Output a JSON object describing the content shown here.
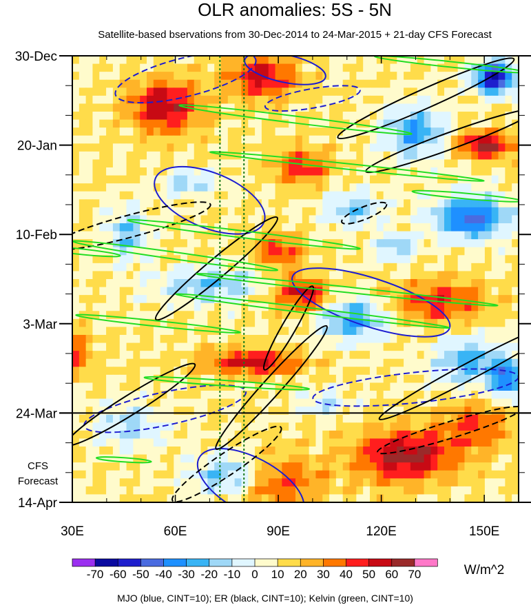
{
  "chart_data": {
    "type": "heatmap",
    "title": "OLR anomalies: 5S - 5N",
    "subtitle": "Satellite-based bservations from 30-Dec-2014 to 24-Mar-2015 + 21-day CFS Forecast",
    "x_ticks": [
      {
        "value": 30,
        "label": "30E"
      },
      {
        "value": 60,
        "label": "60E"
      },
      {
        "value": 90,
        "label": "90E"
      },
      {
        "value": 120,
        "label": "120E"
      },
      {
        "value": 150,
        "label": "150E"
      }
    ],
    "x_range": [
      30,
      160
    ],
    "y_range_days": [
      0,
      105
    ],
    "y_ticks": [
      {
        "day": 0,
        "label": "30-Dec"
      },
      {
        "day": 21,
        "label": "20-Jan"
      },
      {
        "day": 42,
        "label": "10-Feb"
      },
      {
        "day": 63,
        "label": "3-Mar"
      },
      {
        "day": 84,
        "label": "24-Mar"
      },
      {
        "day": 105,
        "label": "14-Apr"
      }
    ],
    "forecast_start_day": 84,
    "forecast_label": [
      "CFS",
      "Forecast"
    ],
    "reference_lon_lines": [
      73,
      80
    ],
    "colorbar": {
      "levels": [
        "-70",
        "-60",
        "-50",
        "-40",
        "-30",
        "-20",
        "-10",
        "0",
        "10",
        "20",
        "30",
        "40",
        "50",
        "60",
        "70"
      ],
      "colors": [
        "#9b2ff0",
        "#0a0aa0",
        "#1e1ecd",
        "#4a6be0",
        "#1e90ff",
        "#39b4f5",
        "#9fd8f7",
        "#e0f6ff",
        "#fffbcc",
        "#ffdc4a",
        "#ffb428",
        "#ff7800",
        "#ff1e1e",
        "#c80a14",
        "#9a2a2a",
        "#ff78c8"
      ],
      "units": "W/m^2"
    },
    "footnote": "MJO (blue, CINT=10); ER (black, CINT=10); Kelvin (green, CINT=10)",
    "contour_series": [
      {
        "name": "MJO",
        "color": "#1c1cd0",
        "cint": 10
      },
      {
        "name": "ER",
        "color": "#000000",
        "cint": 10
      },
      {
        "name": "Kelvin",
        "color": "#22dd22",
        "cint": 10
      }
    ]
  }
}
